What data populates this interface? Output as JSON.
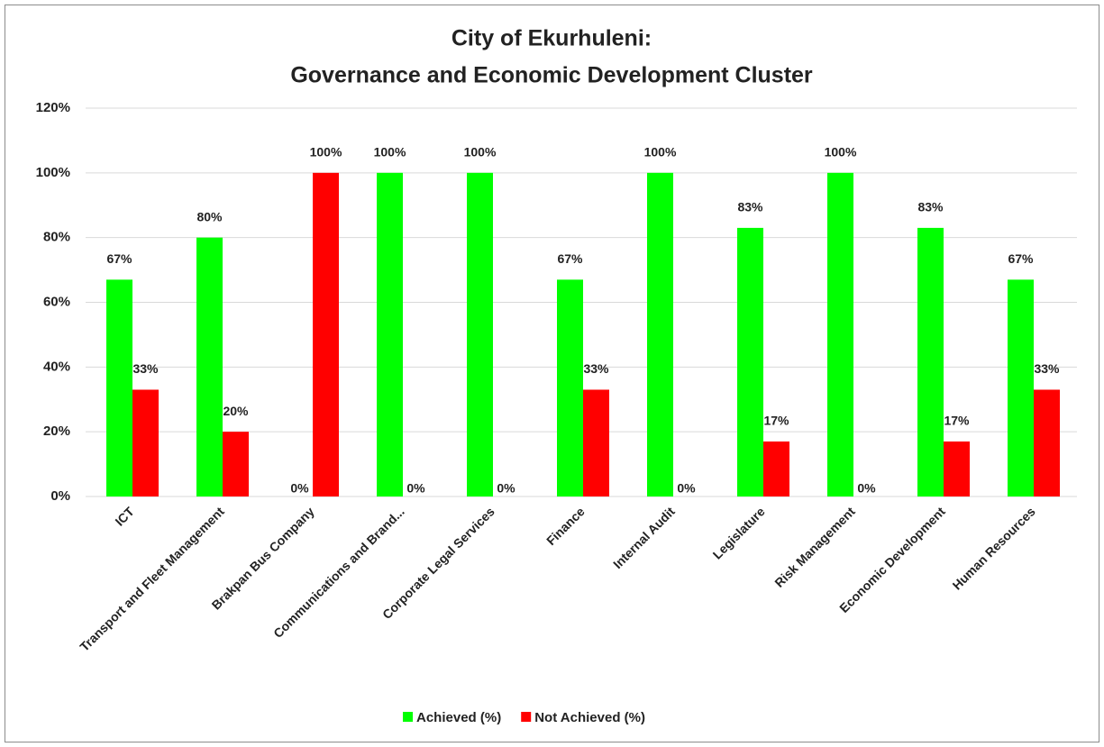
{
  "chart_data": {
    "type": "bar",
    "title": [
      "City of Ekurhuleni:",
      "Governance and Economic Development Cluster"
    ],
    "categories": [
      "ICT",
      "Transport and Fleet Management",
      "Brakpan Bus Company",
      "Communications and Brand...",
      "Corporate Legal Services",
      "Finance",
      "Internal Audit",
      "Legislature",
      "Risk Management",
      "Economic Development",
      "Human Resources"
    ],
    "series": [
      {
        "name": "Achieved (%)",
        "color": "#00ff00",
        "values": [
          67,
          80,
          0,
          100,
          100,
          67,
          100,
          83,
          100,
          83,
          67
        ],
        "value_labels": [
          "67%",
          "80%",
          "0%",
          "100%",
          "100%",
          "67%",
          "100%",
          "83%",
          "100%",
          "83%",
          "67%"
        ]
      },
      {
        "name": "Not Achieved (%)",
        "color": "#ff0000",
        "values": [
          33,
          20,
          100,
          0,
          0,
          33,
          0,
          17,
          0,
          17,
          33
        ],
        "value_labels": [
          "33%",
          "20%",
          "100%",
          "0%",
          "0%",
          "33%",
          "0%",
          "17%",
          "0%",
          "17%",
          "33%"
        ]
      }
    ],
    "ylim": [
      0,
      120
    ],
    "yticks": [
      {
        "value": 0,
        "label": "0%"
      },
      {
        "value": 20,
        "label": "20%"
      },
      {
        "value": 40,
        "label": "40%"
      },
      {
        "value": 60,
        "label": "60%"
      },
      {
        "value": 80,
        "label": "80%"
      },
      {
        "value": 100,
        "label": "100%"
      },
      {
        "value": 120,
        "label": "120%"
      }
    ],
    "grid": true,
    "legend": "bottom"
  }
}
